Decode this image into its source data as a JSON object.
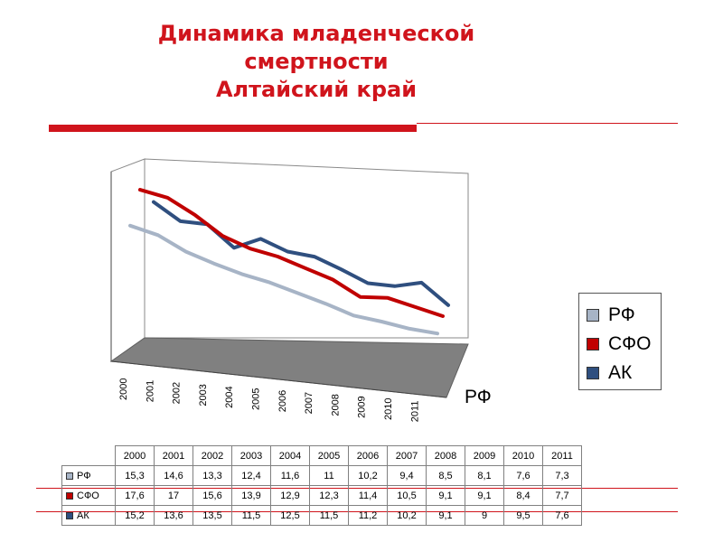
{
  "slide": {
    "title_lines": [
      "Динамика младенческой",
      "смертности",
      "Алтайский край"
    ],
    "title_color": "#d0141c",
    "rule_color": "#d0141c"
  },
  "chart_data": {
    "type": "line",
    "categories": [
      "2000",
      "2001",
      "2002",
      "2003",
      "2004",
      "2005",
      "2006",
      "2007",
      "2008",
      "2009",
      "2010",
      "2011"
    ],
    "series": [
      {
        "name": "РФ",
        "color": "#a7b4c6",
        "values": [
          15.3,
          14.6,
          13.3,
          12.4,
          11.6,
          11,
          10.2,
          9.4,
          8.5,
          8.1,
          7.6,
          7.3
        ]
      },
      {
        "name": "СФО",
        "color": "#c00000",
        "values": [
          17.6,
          17,
          15.6,
          13.9,
          12.9,
          12.3,
          11.4,
          10.5,
          9.1,
          9.1,
          8.4,
          7.7
        ]
      },
      {
        "name": "АК",
        "color": "#2f4f7f",
        "values": [
          15.2,
          13.6,
          13.5,
          11.5,
          12.5,
          11.5,
          11.2,
          10.2,
          9.1,
          9,
          9.5,
          7.6
        ]
      }
    ],
    "depth_axis_label": "РФ",
    "legend_position": "right",
    "table": {
      "header": [
        "2000",
        "2001",
        "2002",
        "2003",
        "2004",
        "2005",
        "2006",
        "2007",
        "2008",
        "2009",
        "2010",
        "2011"
      ],
      "rows": [
        {
          "label": "РФ",
          "color": "#a7b4c6",
          "cells": [
            "15,3",
            "14,6",
            "13,3",
            "12,4",
            "11,6",
            "11",
            "10,2",
            "9,4",
            "8,5",
            "8,1",
            "7,6",
            "7,3"
          ]
        },
        {
          "label": "СФО",
          "color": "#c00000",
          "cells": [
            "17,6",
            "17",
            "15,6",
            "13,9",
            "12,9",
            "12,3",
            "11,4",
            "10,5",
            "9,1",
            "9,1",
            "8,4",
            "7,7"
          ]
        },
        {
          "label": "АК",
          "color": "#2f4f7f",
          "cells": [
            "15,2",
            "13,6",
            "13,5",
            "11,5",
            "12,5",
            "11,5",
            "11,2",
            "10,2",
            "9,1",
            "9",
            "9,5",
            "7,6"
          ]
        }
      ]
    }
  }
}
